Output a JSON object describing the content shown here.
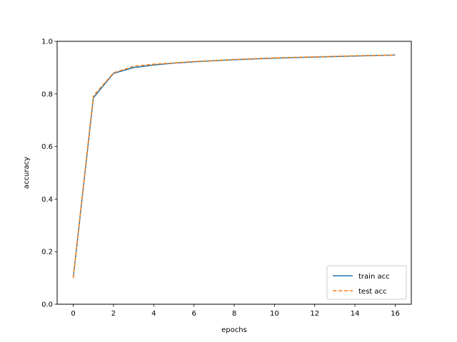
{
  "chart_data": {
    "type": "line",
    "title": "",
    "xlabel": "epochs",
    "ylabel": "accuracy",
    "xlim": [
      -0.8,
      16.8
    ],
    "ylim": [
      0.0,
      1.0
    ],
    "xticks": [
      0,
      2,
      4,
      6,
      8,
      10,
      12,
      14,
      16
    ],
    "yticks": [
      0.0,
      0.2,
      0.4,
      0.6,
      0.8,
      1.0
    ],
    "grid": false,
    "legend_position": "lower-right",
    "x": [
      0,
      1,
      2,
      3,
      4,
      5,
      6,
      7,
      8,
      9,
      10,
      11,
      12,
      13,
      14,
      15,
      16
    ],
    "series": [
      {
        "name": "train acc",
        "color": "#1f77b4",
        "style": "solid",
        "values": [
          0.1,
          0.785,
          0.878,
          0.9,
          0.91,
          0.917,
          0.922,
          0.926,
          0.93,
          0.933,
          0.936,
          0.938,
          0.94,
          0.942,
          0.944,
          0.946,
          0.948
        ]
      },
      {
        "name": "test acc",
        "color": "#ff7f0e",
        "style": "dashed",
        "values": [
          0.1,
          0.792,
          0.88,
          0.905,
          0.913,
          0.918,
          0.923,
          0.927,
          0.931,
          0.934,
          0.937,
          0.939,
          0.941,
          0.943,
          0.945,
          0.946,
          0.948
        ]
      }
    ]
  }
}
